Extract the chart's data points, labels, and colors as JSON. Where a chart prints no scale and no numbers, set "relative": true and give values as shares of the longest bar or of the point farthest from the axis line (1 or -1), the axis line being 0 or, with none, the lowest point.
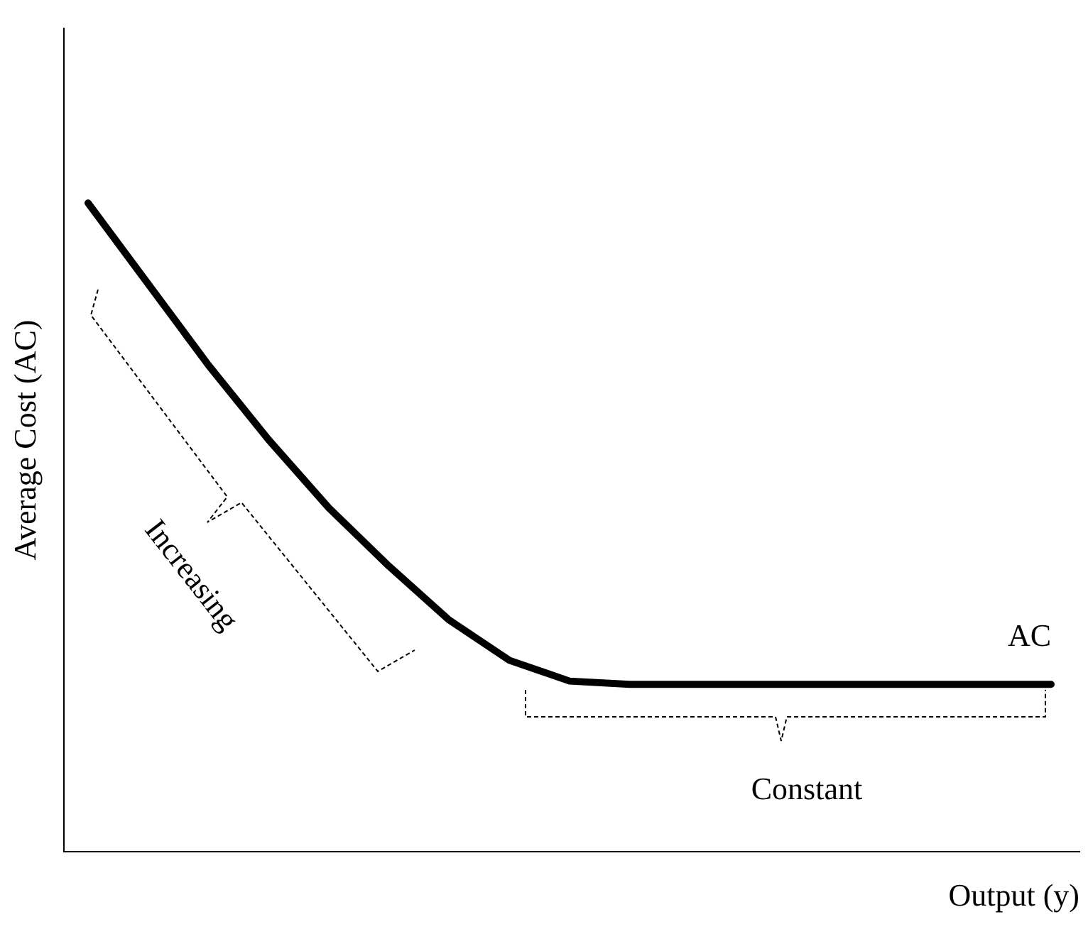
{
  "chart_data": {
    "type": "line",
    "relative": true,
    "xlabel": "Output (y)",
    "ylabel": "Average Cost (AC)",
    "categories": [
      null,
      null,
      null,
      null,
      null,
      null,
      null,
      null,
      null,
      null,
      null,
      null,
      null,
      null,
      null,
      null,
      null
    ],
    "series": [
      {
        "name": "AC",
        "color": "#000000",
        "values": [
          1,
          0.875,
          0.75,
          0.635,
          0.53,
          0.44,
          0.357,
          0.295,
          0.263,
          0.258,
          0.258,
          0.258,
          0.258,
          0.258,
          0.258,
          0.258,
          0.258
        ]
      }
    ],
    "annotations": [
      "Increasing",
      "Constant"
    ],
    "marker": "none",
    "line_style": "solid",
    "legend": false,
    "grid": false,
    "tick_labels": false
  }
}
